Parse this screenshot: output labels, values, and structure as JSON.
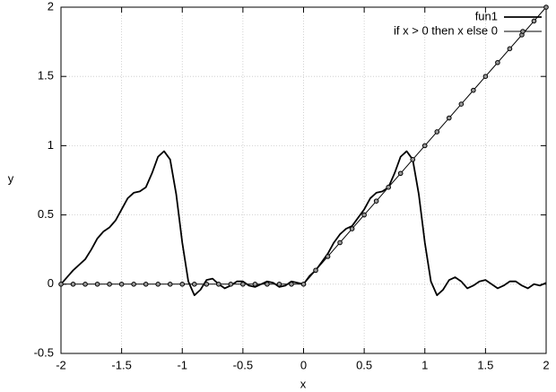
{
  "chart_data": {
    "type": "line",
    "x_label": "x",
    "y_label": "y",
    "xlim": [
      -2,
      2
    ],
    "ylim": [
      -0.5,
      2
    ],
    "xticks": [
      -2,
      -1.5,
      -1,
      -0.5,
      0,
      0.5,
      1,
      1.5,
      2
    ],
    "yticks": [
      -0.5,
      0,
      0.5,
      1,
      1.5,
      2
    ],
    "grid": true,
    "legend": "top-right",
    "series": [
      {
        "name": "fun1",
        "color": "#000000",
        "marker": false,
        "x": [
          -2,
          -1.95,
          -1.9,
          -1.85,
          -1.8,
          -1.75,
          -1.7,
          -1.65,
          -1.6,
          -1.55,
          -1.5,
          -1.45,
          -1.4,
          -1.35,
          -1.3,
          -1.25,
          -1.2,
          -1.15,
          -1.1,
          -1.05,
          -1,
          -0.95,
          -0.9,
          -0.85,
          -0.8,
          -0.75,
          -0.7,
          -0.65,
          -0.6,
          -0.55,
          -0.5,
          -0.45,
          -0.4,
          -0.35,
          -0.3,
          -0.25,
          -0.2,
          -0.15,
          -0.1,
          -0.05,
          0,
          0.05,
          0.1,
          0.15,
          0.2,
          0.25,
          0.3,
          0.35,
          0.4,
          0.45,
          0.5,
          0.55,
          0.6,
          0.65,
          0.7,
          0.75,
          0.8,
          0.85,
          0.9,
          0.95,
          1,
          1.05,
          1.1,
          1.15,
          1.2,
          1.25,
          1.3,
          1.35,
          1.4,
          1.45,
          1.5,
          1.55,
          1.6,
          1.65,
          1.7,
          1.75,
          1.8,
          1.85,
          1.9,
          1.95,
          2
        ],
        "values": [
          0,
          0.05,
          0.1,
          0.14,
          0.18,
          0.25,
          0.33,
          0.38,
          0.41,
          0.46,
          0.54,
          0.62,
          0.66,
          0.67,
          0.7,
          0.8,
          0.92,
          0.96,
          0.9,
          0.65,
          0.3,
          0.02,
          -0.08,
          -0.04,
          0.03,
          0.04,
          0,
          -0.03,
          -0.01,
          0.02,
          0.02,
          -0.01,
          -0.02,
          0,
          0.02,
          0.01,
          -0.02,
          -0.01,
          0.02,
          0.01,
          0,
          0.06,
          0.1,
          0.16,
          0.22,
          0.3,
          0.36,
          0.4,
          0.42,
          0.48,
          0.54,
          0.62,
          0.66,
          0.67,
          0.7,
          0.8,
          0.92,
          0.96,
          0.9,
          0.65,
          0.3,
          0.02,
          -0.08,
          -0.04,
          0.03,
          0.05,
          0.02,
          -0.03,
          -0.01,
          0.02,
          0.03,
          0,
          -0.03,
          -0.01,
          0.02,
          0.02,
          -0.01,
          -0.03,
          0,
          -0.01,
          0.01
        ]
      },
      {
        "name": "if x > 0 then x else 0",
        "color": "#000000",
        "marker": true,
        "x": [
          -2,
          -1.9,
          -1.8,
          -1.7,
          -1.6,
          -1.5,
          -1.4,
          -1.3,
          -1.2,
          -1.1,
          -1,
          -0.9,
          -0.8,
          -0.7,
          -0.6,
          -0.5,
          -0.4,
          -0.3,
          -0.2,
          -0.1,
          0,
          0.1,
          0.2,
          0.3,
          0.4,
          0.5,
          0.6,
          0.7,
          0.8,
          0.9,
          1,
          1.1,
          1.2,
          1.3,
          1.4,
          1.5,
          1.6,
          1.7,
          1.8,
          1.9,
          2
        ],
        "values": [
          0,
          0,
          0,
          0,
          0,
          0,
          0,
          0,
          0,
          0,
          0,
          0,
          0,
          0,
          0,
          0,
          0,
          0,
          0,
          0,
          0,
          0.1,
          0.2,
          0.3,
          0.4,
          0.5,
          0.6,
          0.7,
          0.8,
          0.9,
          1,
          1.1,
          1.2,
          1.3,
          1.4,
          1.5,
          1.6,
          1.7,
          1.8,
          1.9,
          2
        ]
      }
    ]
  }
}
